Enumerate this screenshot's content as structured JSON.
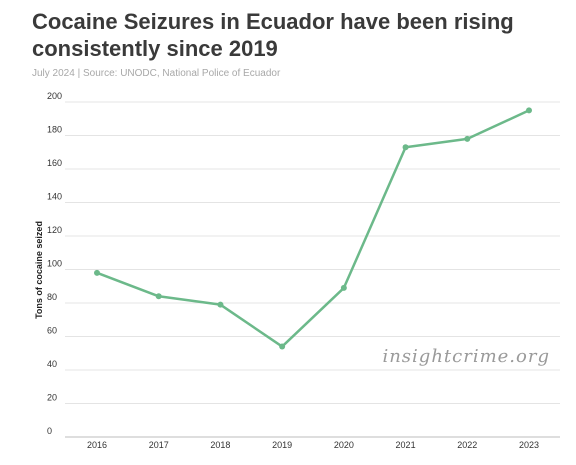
{
  "header": {
    "title": "Cocaine Seizures in Ecuador have been rising consistently since 2019",
    "subtitle": "July 2024 | Source: UNODC, National Police of Ecuador"
  },
  "watermark": "insightcrime.org",
  "chart_data": {
    "type": "line",
    "title": "Cocaine Seizures in Ecuador have been rising consistently since 2019",
    "xlabel": "",
    "ylabel": "Tons of cocaine seized",
    "x": [
      "2016",
      "2017",
      "2018",
      "2019",
      "2020",
      "2021",
      "2022",
      "2023"
    ],
    "series": [
      {
        "values": [
          98,
          84,
          79,
          54,
          89,
          173,
          178,
          195
        ]
      }
    ],
    "ylim": [
      0,
      200
    ],
    "yticks": [
      0,
      20,
      40,
      60,
      80,
      100,
      120,
      140,
      160,
      180,
      200
    ],
    "grid": true,
    "legend": "none",
    "colors": {
      "line": "#6cb98a",
      "grid": "#e4e4e4"
    }
  }
}
